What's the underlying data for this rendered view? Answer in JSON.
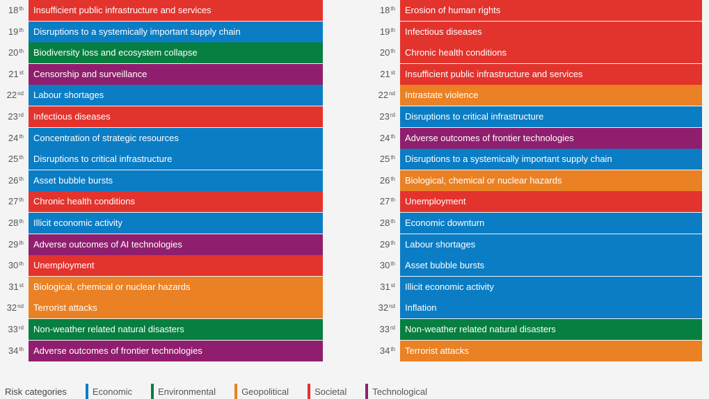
{
  "colors": {
    "Economic": "#0b7dc4",
    "Environmental": "#067f40",
    "Geopolitical": "#ea8124",
    "Societal": "#e3332d",
    "Technological": "#8f1f6e"
  },
  "legend": {
    "title": "Risk categories",
    "items": [
      "Economic",
      "Environmental",
      "Geopolitical",
      "Societal",
      "Technological"
    ]
  },
  "chart_data": {
    "type": "table",
    "columns": [
      {
        "rows": [
          {
            "rank": "18",
            "suffix": "th",
            "label": "Insufficient public infrastructure and services",
            "category": "Societal"
          },
          {
            "rank": "19",
            "suffix": "th",
            "label": "Disruptions to a systemically important supply chain",
            "category": "Economic"
          },
          {
            "rank": "20",
            "suffix": "th",
            "label": "Biodiversity loss and ecosystem collapse",
            "category": "Environmental"
          },
          {
            "rank": "21",
            "suffix": "st",
            "label": "Censorship and surveillance",
            "category": "Technological"
          },
          {
            "rank": "22",
            "suffix": "nd",
            "label": "Labour shortages",
            "category": "Economic"
          },
          {
            "rank": "23",
            "suffix": "rd",
            "label": "Infectious diseases",
            "category": "Societal"
          },
          {
            "rank": "24",
            "suffix": "th",
            "label": "Concentration of strategic resources",
            "category": "Economic"
          },
          {
            "rank": "25",
            "suffix": "th",
            "label": "Disruptions to critical infrastructure",
            "category": "Economic"
          },
          {
            "rank": "26",
            "suffix": "th",
            "label": "Asset bubble bursts",
            "category": "Economic"
          },
          {
            "rank": "27",
            "suffix": "th",
            "label": "Chronic health conditions",
            "category": "Societal"
          },
          {
            "rank": "28",
            "suffix": "th",
            "label": "Illicit economic activity",
            "category": "Economic"
          },
          {
            "rank": "29",
            "suffix": "th",
            "label": "Adverse outcomes of AI technologies",
            "category": "Technological"
          },
          {
            "rank": "30",
            "suffix": "th",
            "label": "Unemployment",
            "category": "Societal"
          },
          {
            "rank": "31",
            "suffix": "st",
            "label": "Biological, chemical or nuclear hazards",
            "category": "Geopolitical"
          },
          {
            "rank": "32",
            "suffix": "nd",
            "label": "Terrorist attacks",
            "category": "Geopolitical"
          },
          {
            "rank": "33",
            "suffix": "rd",
            "label": "Non-weather related natural disasters",
            "category": "Environmental"
          },
          {
            "rank": "34",
            "suffix": "th",
            "label": "Adverse outcomes of frontier technologies",
            "category": "Technological"
          }
        ]
      },
      {
        "rows": [
          {
            "rank": "18",
            "suffix": "th",
            "label": "Erosion of human rights",
            "category": "Societal"
          },
          {
            "rank": "19",
            "suffix": "th",
            "label": "Infectious diseases",
            "category": "Societal"
          },
          {
            "rank": "20",
            "suffix": "th",
            "label": "Chronic health conditions",
            "category": "Societal"
          },
          {
            "rank": "21",
            "suffix": "st",
            "label": "Insufficient public infrastructure and services",
            "category": "Societal"
          },
          {
            "rank": "22",
            "suffix": "nd",
            "label": "Intrastate violence",
            "category": "Geopolitical"
          },
          {
            "rank": "23",
            "suffix": "rd",
            "label": "Disruptions to critical infrastructure",
            "category": "Economic"
          },
          {
            "rank": "24",
            "suffix": "th",
            "label": "Adverse outcomes of frontier technologies",
            "category": "Technological"
          },
          {
            "rank": "25",
            "suffix": "th",
            "label": "Disruptions to a systemically important supply chain",
            "category": "Economic"
          },
          {
            "rank": "26",
            "suffix": "th",
            "label": "Biological, chemical or nuclear hazards",
            "category": "Geopolitical"
          },
          {
            "rank": "27",
            "suffix": "th",
            "label": "Unemployment",
            "category": "Societal"
          },
          {
            "rank": "28",
            "suffix": "th",
            "label": "Economic downturn",
            "category": "Economic"
          },
          {
            "rank": "29",
            "suffix": "th",
            "label": "Labour shortages",
            "category": "Economic"
          },
          {
            "rank": "30",
            "suffix": "th",
            "label": "Asset bubble bursts",
            "category": "Economic"
          },
          {
            "rank": "31",
            "suffix": "st",
            "label": "Illicit economic activity",
            "category": "Economic"
          },
          {
            "rank": "32",
            "suffix": "nd",
            "label": "Inflation",
            "category": "Economic"
          },
          {
            "rank": "33",
            "suffix": "rd",
            "label": "Non-weather related natural disasters",
            "category": "Environmental"
          },
          {
            "rank": "34",
            "suffix": "th",
            "label": "Terrorist attacks",
            "category": "Geopolitical"
          }
        ]
      }
    ]
  }
}
